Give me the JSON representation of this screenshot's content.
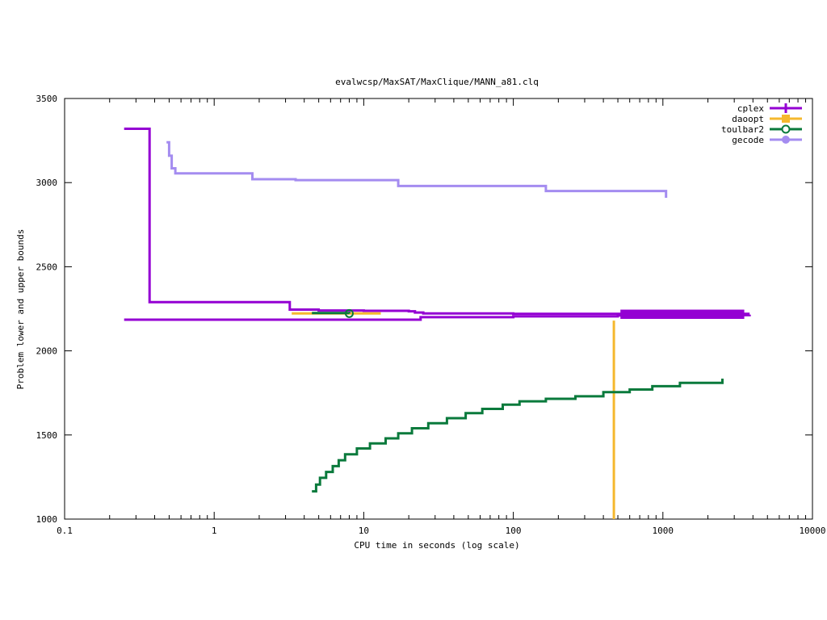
{
  "colors": {
    "cplex": "#9400d3",
    "daoopt": "#f5b82e",
    "toulbar2": "#0a7a3c",
    "gecode": "#a48cf0"
  },
  "chart_data": {
    "type": "line",
    "title": "evalwcsp/MaxSAT/MaxClique/MANN_a81.clq",
    "xlabel": "CPU time in seconds (log scale)",
    "ylabel": "Problem lower and upper bounds",
    "x_scale": "log",
    "xlim": [
      0.1,
      10000
    ],
    "ylim": [
      1000,
      3500
    ],
    "x_ticks": [
      0.1,
      1,
      10,
      100,
      1000,
      10000
    ],
    "x_tick_labels": [
      "0.1",
      "1",
      "10",
      "100",
      "1000",
      "10000"
    ],
    "y_ticks": [
      1000,
      1500,
      2000,
      2500,
      3000,
      3500
    ],
    "y_tick_labels": [
      "1000",
      "1500",
      "2000",
      "2500",
      "3000",
      "3500"
    ],
    "grid": false,
    "legend_position": "top-right",
    "legend": [
      "cplex",
      "daoopt",
      "toulbar2",
      "gecode"
    ],
    "series": [
      {
        "name": "cplex",
        "role": "upper bound",
        "x": [
          0.25,
          0.37,
          0.37,
          3.2,
          3.2,
          5,
          5,
          10,
          20,
          22,
          22,
          25,
          100,
          500,
          3800
        ],
        "y": [
          3320,
          3320,
          2290,
          2290,
          2245,
          2245,
          2240,
          2238,
          2235,
          2230,
          2228,
          2222,
          2220,
          2220,
          2220
        ]
      },
      {
        "name": "cplex",
        "role": "lower bound",
        "x": [
          0.25,
          24,
          24,
          100,
          500,
          1000,
          3800
        ],
        "y": [
          2185,
          2185,
          2200,
          2205,
          2210,
          2212,
          2215
        ]
      },
      {
        "name": "daoopt",
        "x": [
          3.3,
          13,
          13
        ],
        "y": [
          2222,
          2222,
          2222
        ]
      },
      {
        "name": "daoopt",
        "role": "vertical drop",
        "x": [
          470,
          470
        ],
        "y": [
          2180,
          1000
        ]
      },
      {
        "name": "toulbar2",
        "role": "upper bound",
        "x": [
          4.5,
          8
        ],
        "y": [
          2225,
          2222
        ]
      },
      {
        "name": "toulbar2",
        "role": "lower bound",
        "x": [
          4.5,
          4.8,
          5.1,
          5.6,
          6.2,
          6.8,
          7.5,
          9,
          11,
          14,
          17,
          21,
          27,
          36,
          48,
          62,
          85,
          110,
          165,
          260,
          400,
          600,
          850,
          1300,
          2500
        ],
        "y": [
          1165,
          1205,
          1245,
          1280,
          1315,
          1350,
          1385,
          1420,
          1450,
          1480,
          1510,
          1540,
          1570,
          1600,
          1630,
          1655,
          1680,
          1700,
          1715,
          1730,
          1755,
          1770,
          1790,
          1810,
          1835
        ]
      },
      {
        "name": "gecode",
        "x": [
          0.48,
          0.5,
          0.52,
          0.55,
          1.8,
          3.5,
          17,
          165,
          1050,
          1050
        ],
        "y": [
          3240,
          3160,
          3085,
          3055,
          3020,
          3015,
          2980,
          2950,
          2945,
          2910
        ]
      }
    ]
  }
}
